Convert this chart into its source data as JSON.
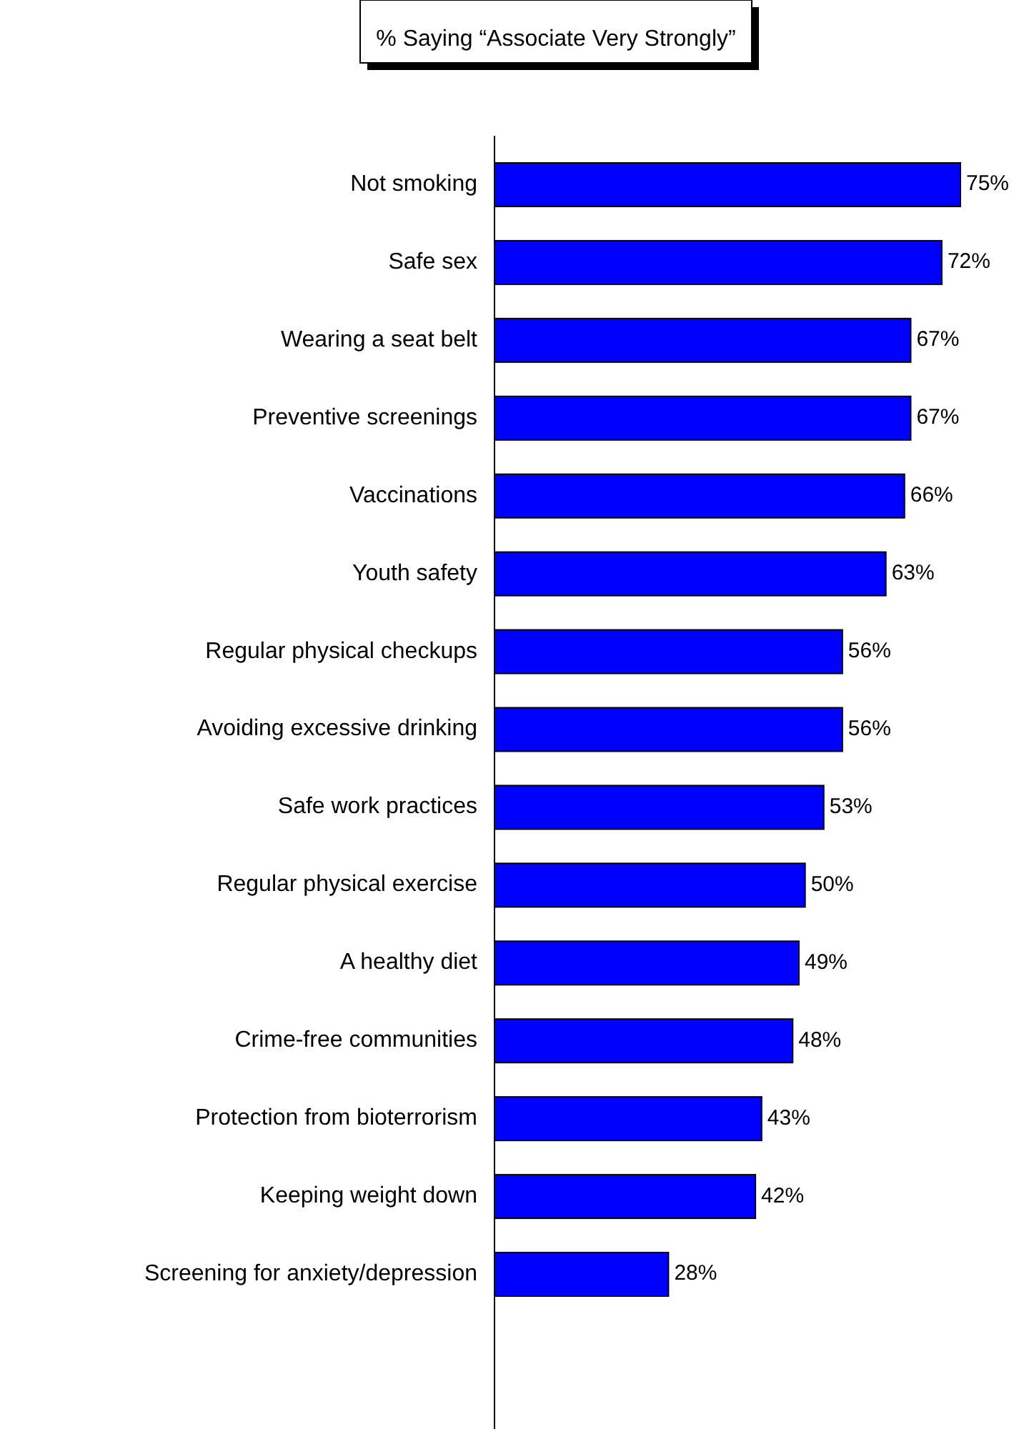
{
  "chart_data": {
    "type": "bar",
    "orientation": "horizontal",
    "title": "% Saying “Associate Very Strongly”",
    "categories": [
      "Not smoking",
      "Safe sex",
      "Wearing a seat belt",
      "Preventive screenings",
      "Vaccinations",
      "Youth safety",
      "Regular physical checkups",
      "Avoiding excessive drinking",
      "Safe work practices",
      "Regular physical exercise",
      "A healthy diet",
      "Crime-free communities",
      "Protection from bioterrorism",
      "Keeping weight down",
      "Screening for anxiety/depression"
    ],
    "values": [
      75,
      72,
      67,
      67,
      66,
      63,
      56,
      56,
      53,
      50,
      49,
      48,
      43,
      42,
      28
    ],
    "value_labels": [
      "75%",
      "72%",
      "67%",
      "67%",
      "66%",
      "63%",
      "56%",
      "56%",
      "53%",
      "50%",
      "49%",
      "48%",
      "43%",
      "42%",
      "28%"
    ],
    "color": "#0000ff",
    "grid": false
  }
}
